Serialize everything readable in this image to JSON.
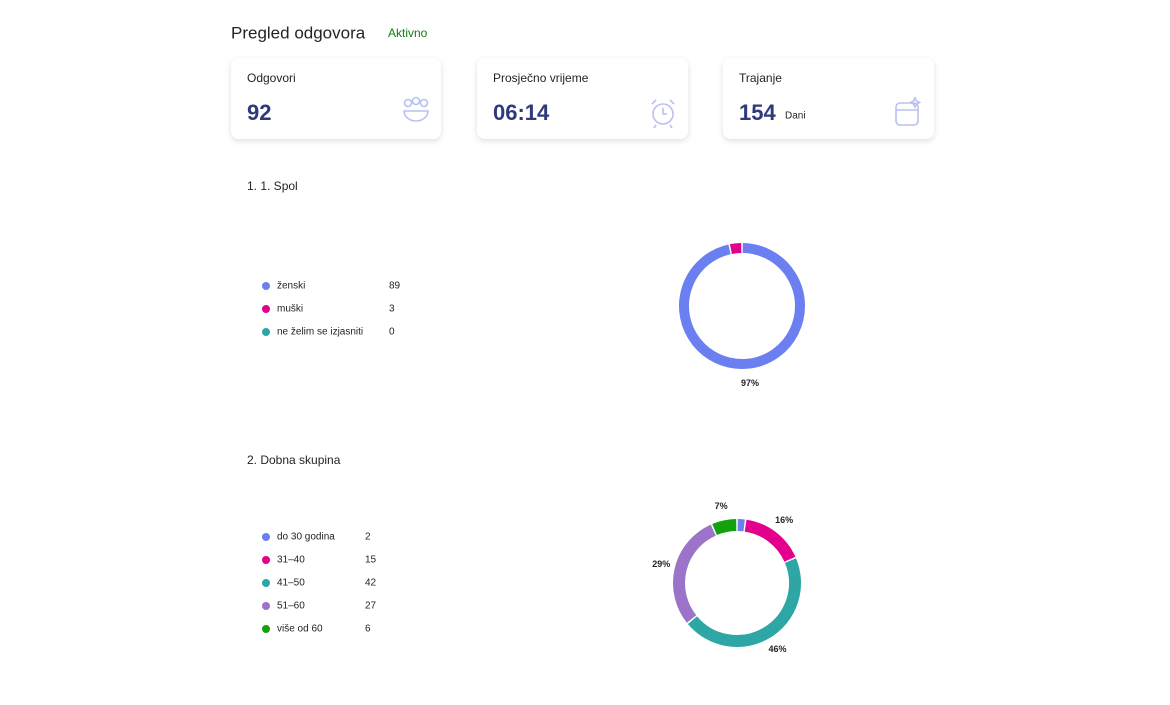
{
  "header": {
    "title": "Pregled odgovora",
    "status": "Aktivno"
  },
  "cards": [
    {
      "title": "Odgovori",
      "value": "92"
    },
    {
      "title": "Prosječno vrijeme",
      "value": "06:14"
    },
    {
      "title": "Trajanje",
      "value": "154",
      "unit": "Dani"
    }
  ],
  "chart_data": [
    {
      "type": "pie",
      "title": "1. 1. Spol",
      "categories": [
        "ženski",
        "muški",
        "ne želim se izjasniti"
      ],
      "values": [
        89,
        3,
        0
      ],
      "value_labels": [
        "97%",
        null,
        null
      ],
      "colors": [
        "#6b7ff0",
        "#e3008c",
        "#2ea6a6"
      ]
    },
    {
      "type": "pie",
      "title": "2. Dobna skupina",
      "categories": [
        "do 30 godina",
        "31–40",
        "41–50",
        "51–60",
        "više od 60"
      ],
      "values": [
        2,
        15,
        42,
        27,
        6
      ],
      "value_labels": [
        null,
        "16%",
        "46%",
        "29%",
        "7%"
      ],
      "colors": [
        "#6b7ff0",
        "#e3008c",
        "#2ea6a6",
        "#9b73c8",
        "#13a10e"
      ]
    }
  ]
}
